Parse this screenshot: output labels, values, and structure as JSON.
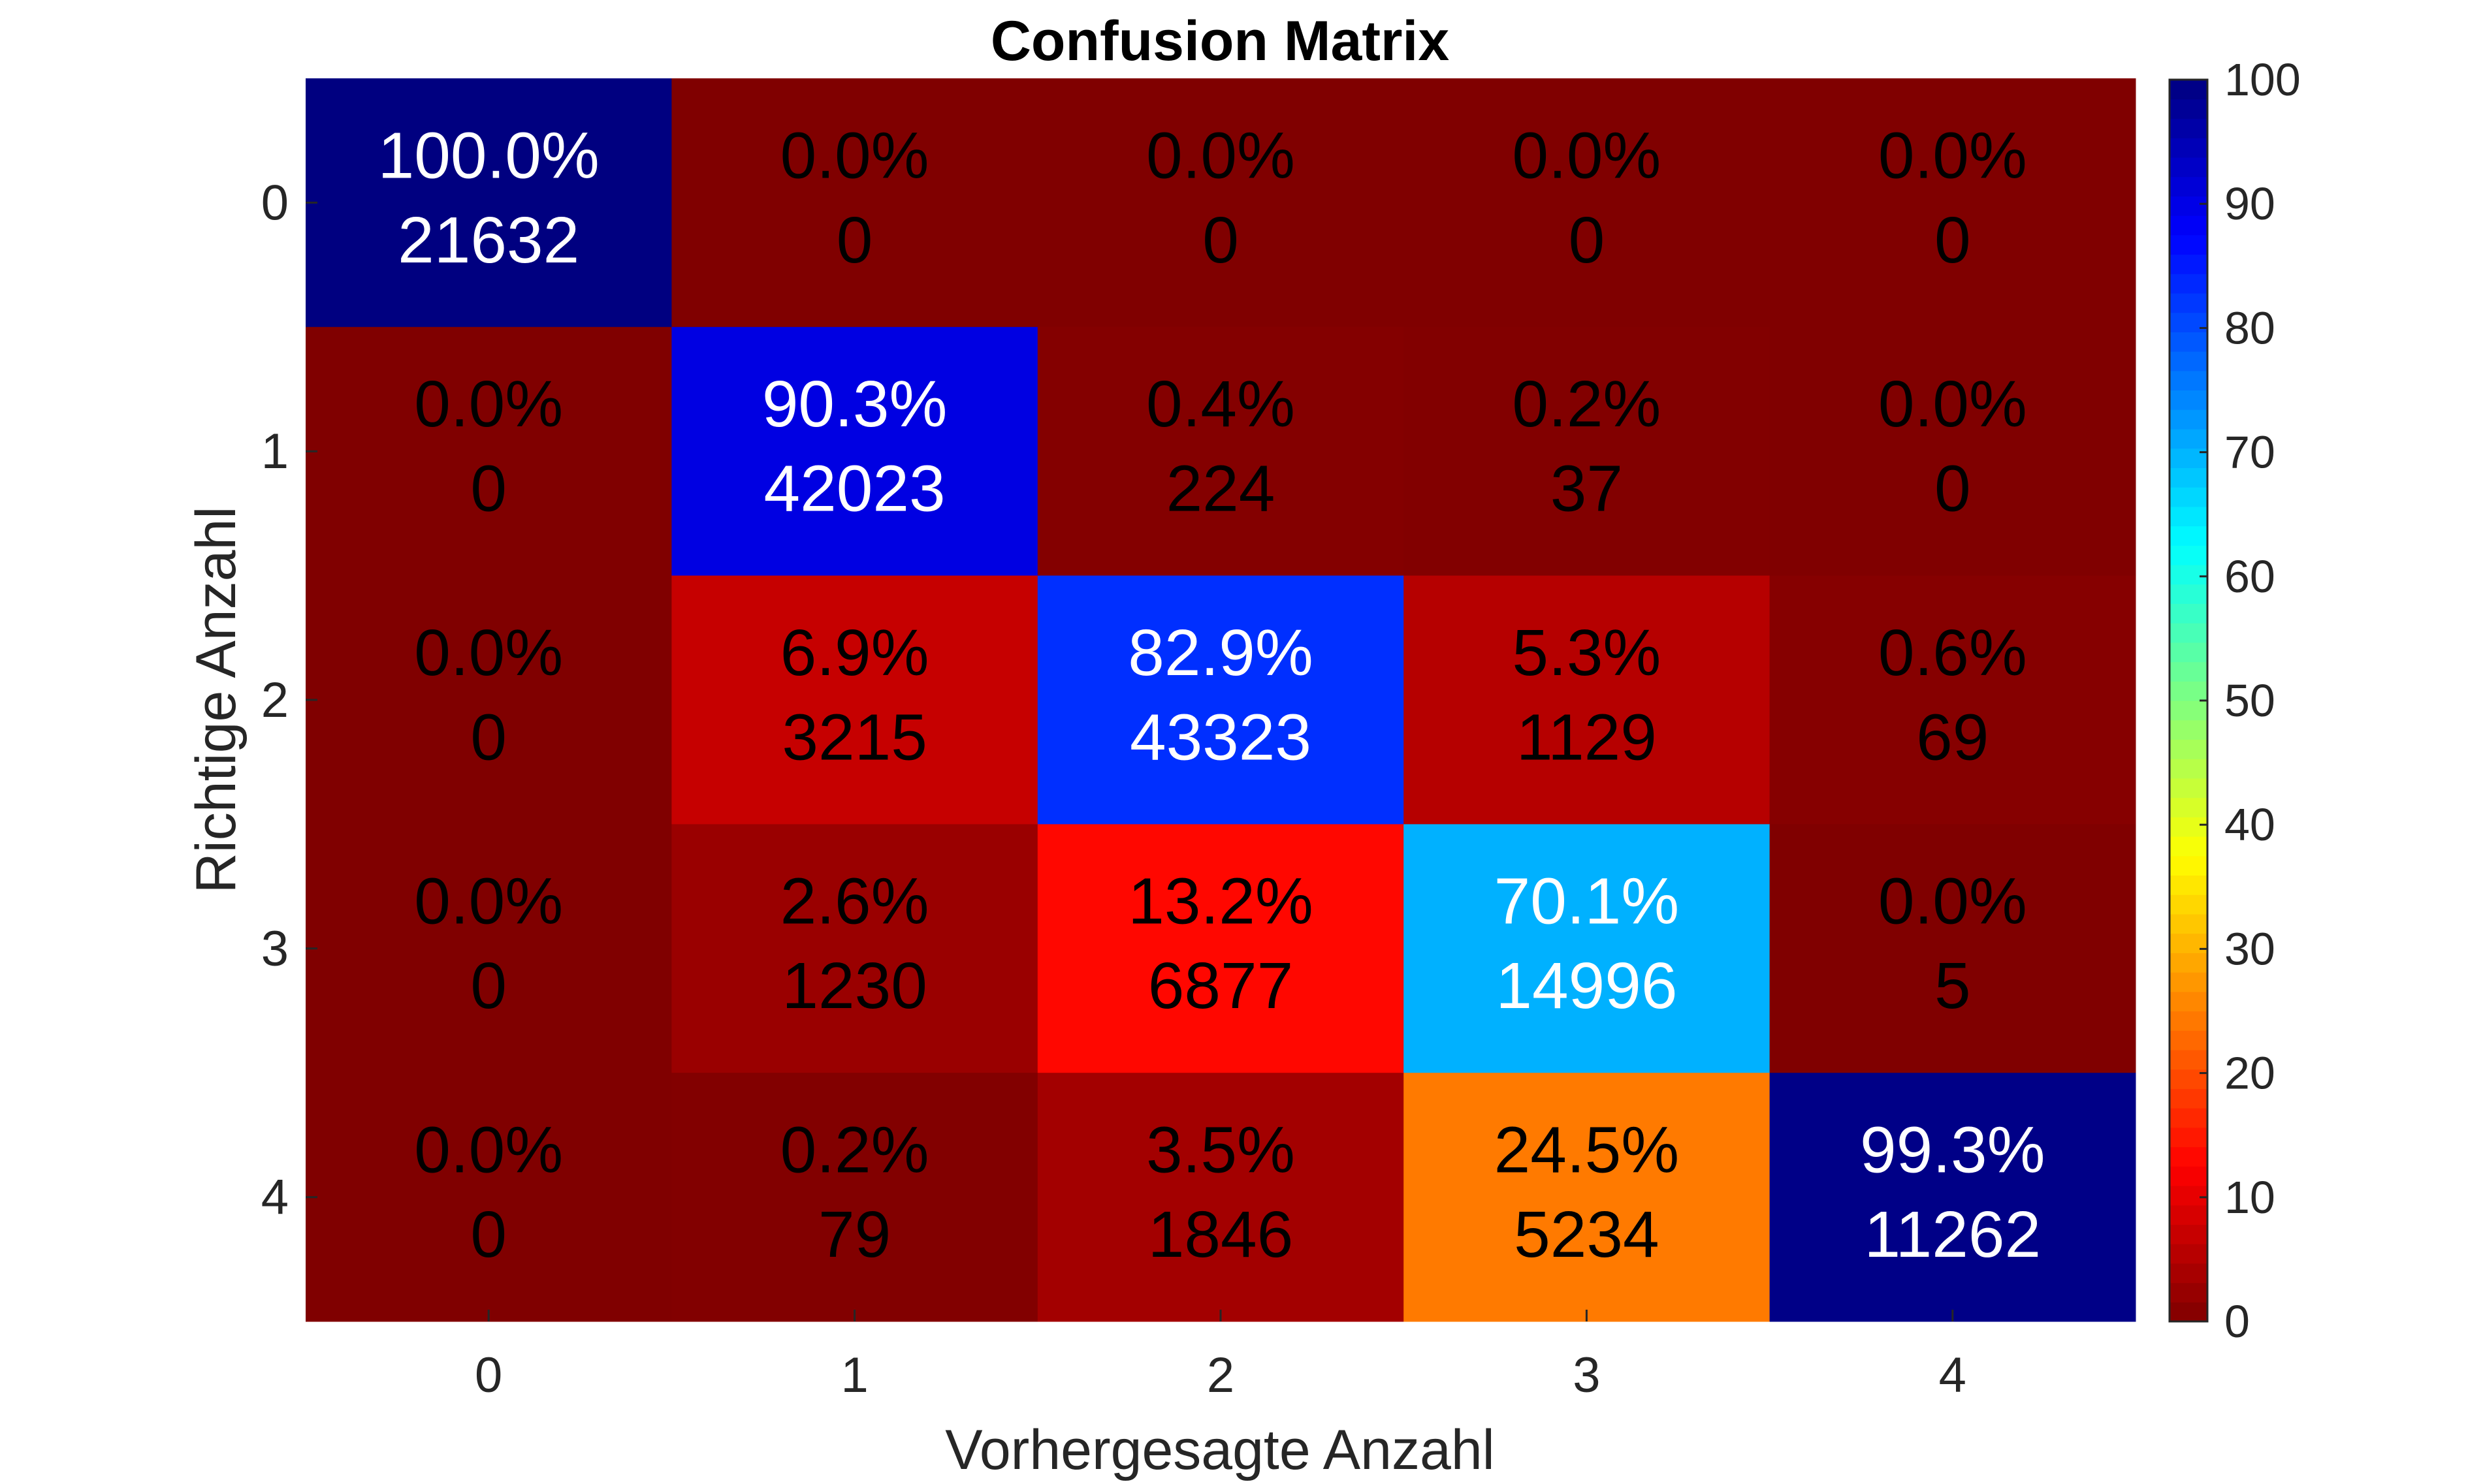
{
  "chart_data": {
    "type": "heatmap",
    "title": "Confusion Matrix",
    "xlabel": "Vorhergesagte Anzahl",
    "ylabel": "Richtige Anzahl",
    "x_categories": [
      "0",
      "1",
      "2",
      "3",
      "4"
    ],
    "y_categories": [
      "0",
      "1",
      "2",
      "3",
      "4"
    ],
    "percent_labels": [
      [
        "100.0%",
        "0.0%",
        "0.0%",
        "0.0%",
        "0.0%"
      ],
      [
        "0.0%",
        "90.3%",
        "0.4%",
        "0.2%",
        "0.0%"
      ],
      [
        "0.0%",
        "6.9%",
        "82.9%",
        "5.3%",
        "0.6%"
      ],
      [
        "0.0%",
        "2.6%",
        "13.2%",
        "70.1%",
        "0.0%"
      ],
      [
        "0.0%",
        "0.2%",
        "3.5%",
        "24.5%",
        "99.3%"
      ]
    ],
    "counts": [
      [
        21632,
        0,
        0,
        0,
        0
      ],
      [
        0,
        42023,
        224,
        37,
        0
      ],
      [
        0,
        3215,
        43323,
        1129,
        69
      ],
      [
        0,
        1230,
        6877,
        14996,
        5
      ],
      [
        0,
        79,
        1846,
        5234,
        11262
      ]
    ],
    "colorbar": {
      "range": [
        0,
        100
      ],
      "ticks": [
        "0",
        "10",
        "20",
        "30",
        "40",
        "50",
        "60",
        "70",
        "80",
        "90",
        "100"
      ],
      "colormap": "jet"
    }
  }
}
